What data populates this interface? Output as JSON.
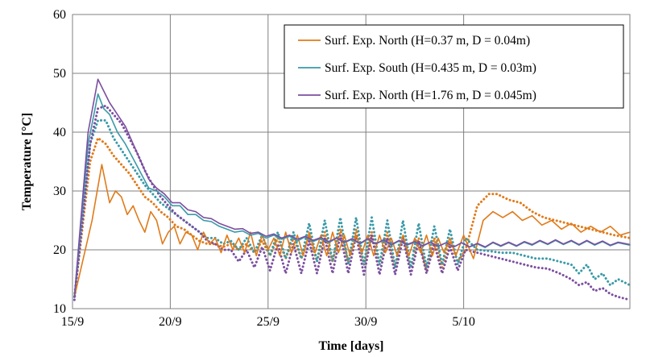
{
  "chart_data": {
    "type": "line",
    "title": "",
    "xlabel": "Time [days]",
    "ylabel": "Temperature [°C]",
    "xlim": [
      15.5,
      44.0
    ],
    "ylim": [
      10,
      60
    ],
    "grid": true,
    "legend_position": "top-right",
    "x_ticks": [
      {
        "value": 15.5,
        "label": "15/9"
      },
      {
        "value": 20.5,
        "label": "20/9"
      },
      {
        "value": 25.5,
        "label": "25/9"
      },
      {
        "value": 30.5,
        "label": "30/9"
      },
      {
        "value": 35.5,
        "label": "5/10"
      }
    ],
    "y_ticks": [
      10,
      20,
      30,
      40,
      50,
      60
    ],
    "series": [
      {
        "name": "Surf. Exp. North (H=0.37 m, D = 0.04m)",
        "color": "#e07b1a",
        "style": "solid",
        "legend": true,
        "x": [
          15.6,
          16.5,
          17.0,
          17.4,
          17.7,
          18.0,
          18.3,
          18.6,
          18.9,
          19.2,
          19.5,
          19.8,
          20.1,
          20.4,
          20.7,
          21.0,
          21.3,
          21.6,
          21.9,
          22.2,
          22.5,
          22.8,
          23.1,
          23.4,
          23.7,
          24.0,
          24.3,
          24.6,
          24.9,
          25.2,
          25.5,
          25.8,
          26.1,
          26.4,
          26.7,
          27.0,
          27.3,
          27.6,
          27.9,
          28.2,
          28.5,
          28.8,
          29.1,
          29.4,
          29.7,
          30.0,
          30.3,
          30.6,
          30.9,
          31.2,
          31.5,
          31.8,
          32.1,
          32.4,
          32.7,
          33.0,
          33.3,
          33.6,
          33.9,
          34.2,
          34.5,
          34.8,
          35.1,
          35.5,
          36.0,
          36.5,
          37.0,
          37.5,
          38.0,
          38.5,
          39.0,
          39.5,
          40.0,
          40.5,
          41.0,
          41.5,
          42.0,
          42.5,
          43.0,
          43.5,
          44.0
        ],
        "values": [
          12,
          25,
          34.5,
          28,
          30,
          29,
          26,
          27.5,
          25,
          23,
          26.5,
          25,
          21,
          23,
          24,
          21,
          23,
          22.5,
          20,
          23,
          21,
          22,
          19.5,
          22.5,
          20,
          22,
          19.5,
          23,
          19,
          22.5,
          20,
          22,
          19,
          23,
          19.5,
          22.5,
          19,
          23,
          19.5,
          22.5,
          19,
          23,
          19.5,
          22.5,
          19,
          22.5,
          19.5,
          22.5,
          19,
          22.5,
          19.5,
          22,
          19,
          22.5,
          19,
          22,
          19.5,
          22.5,
          19,
          22,
          19.5,
          22,
          19,
          22.5,
          18.5,
          25,
          26.5,
          25.5,
          26.5,
          25,
          25.8,
          24.2,
          25,
          23.5,
          24.5,
          23,
          24,
          23,
          24,
          22.5,
          23
        ]
      },
      {
        "name": "Surf. Exp. South (H=0.435 m, D = 0.03m)",
        "color": "#3a9aa8",
        "style": "solid",
        "legend": true,
        "x": [
          15.6,
          16.3,
          16.8,
          17.1,
          17.4,
          17.8,
          18.2,
          18.6,
          19.0,
          19.4,
          19.8,
          20.2,
          20.6,
          21.0,
          21.4,
          21.8,
          22.2,
          22.6,
          23.0,
          23.4,
          23.8,
          24.2,
          24.6,
          25.0,
          25.4,
          25.8,
          26.2,
          26.6,
          27.0,
          27.4,
          27.8,
          28.2,
          28.6,
          29.0,
          29.4,
          29.8,
          30.2,
          30.6,
          31.0,
          31.4,
          31.8,
          32.2,
          32.6,
          33.0,
          33.4,
          33.8,
          34.2,
          34.6,
          35.0,
          35.4,
          35.8,
          36.2,
          36.6,
          37.0,
          37.4,
          37.8,
          38.2,
          38.6,
          39.0,
          39.4,
          39.8,
          40.2,
          40.6,
          41.0,
          41.4,
          41.8,
          42.2,
          42.6,
          43.0,
          43.4,
          44.0
        ],
        "values": [
          12,
          38,
          46.5,
          44,
          43,
          40,
          38,
          35.5,
          33,
          30.5,
          30,
          29,
          27.5,
          27.5,
          26,
          26,
          25,
          24.8,
          24,
          23.5,
          23,
          23.2,
          22.5,
          22.8,
          22,
          22.5,
          21.8,
          22.3,
          21.5,
          22.2,
          21.4,
          22,
          21.2,
          22,
          21.2,
          21.8,
          21,
          21.8,
          21,
          21.6,
          20.8,
          21.5,
          20.8,
          21.3,
          20.6,
          21.3,
          20.6,
          21.2,
          20.5,
          21.2,
          20.5,
          21,
          20.4,
          21.2,
          20.6,
          21.2,
          20.6,
          21.3,
          20.8,
          21.5,
          20.9,
          21.6,
          20.9,
          21.5,
          20.8,
          21.5,
          20.8,
          21.4,
          20.7,
          21.2,
          20.8
        ]
      },
      {
        "name": "Surf. Exp. North (H=1.76 m, D = 0.045m)",
        "color": "#7b4fa0",
        "style": "solid",
        "legend": true,
        "x": [
          15.6,
          16.3,
          16.8,
          17.1,
          17.4,
          17.8,
          18.2,
          18.6,
          19.0,
          19.4,
          19.8,
          20.2,
          20.6,
          21.0,
          21.4,
          21.8,
          22.2,
          22.6,
          23.0,
          23.4,
          23.8,
          24.2,
          24.6,
          25.0,
          25.4,
          25.8,
          26.2,
          26.6,
          27.0,
          27.4,
          27.8,
          28.2,
          28.6,
          29.0,
          29.4,
          29.8,
          30.2,
          30.6,
          31.0,
          31.4,
          31.8,
          32.2,
          32.6,
          33.0,
          33.4,
          33.8,
          34.2,
          34.6,
          35.0,
          35.4,
          35.8,
          36.2,
          36.6,
          37.0,
          37.4,
          37.8,
          38.2,
          38.6,
          39.0,
          39.4,
          39.8,
          40.2,
          40.6,
          41.0,
          41.4,
          41.8,
          42.2,
          42.6,
          43.0,
          43.4,
          44.0
        ],
        "values": [
          12,
          40,
          49,
          47,
          45,
          43,
          41,
          38,
          35,
          32,
          30.5,
          29.5,
          28,
          28,
          26.8,
          26.5,
          25.5,
          25.3,
          24.5,
          24,
          23.5,
          23.6,
          22.8,
          23,
          22.3,
          22.7,
          22,
          22.5,
          21.8,
          22.3,
          21.6,
          22.1,
          21.4,
          22,
          21.3,
          21.9,
          21.1,
          21.9,
          21,
          21.7,
          20.9,
          21.6,
          20.9,
          21.4,
          20.7,
          21.3,
          20.6,
          21.2,
          20.5,
          21.2,
          20.5,
          21.1,
          20.5,
          21.3,
          20.7,
          21.3,
          20.7,
          21.4,
          20.9,
          21.6,
          21,
          21.7,
          21,
          21.6,
          20.9,
          21.6,
          20.9,
          21.5,
          20.8,
          21.3,
          20.9
        ]
      },
      {
        "name": "",
        "color": "#e07b1a",
        "style": "dotted",
        "legend": false,
        "x": [
          15.6,
          16.4,
          16.8,
          17.2,
          17.6,
          18.0,
          18.4,
          18.8,
          19.2,
          19.6,
          20.0,
          20.4,
          20.8,
          21.2,
          21.6,
          22.0,
          22.4,
          22.8,
          23.2,
          23.6,
          24.0,
          24.4,
          24.8,
          25.2,
          25.6,
          26.0,
          26.4,
          26.8,
          27.2,
          27.6,
          28.0,
          28.4,
          28.8,
          29.2,
          29.6,
          30.0,
          30.4,
          30.8,
          31.2,
          31.6,
          32.0,
          32.4,
          32.8,
          33.2,
          33.6,
          34.0,
          34.4,
          34.8,
          35.2,
          35.6,
          36.2,
          36.8,
          37.2,
          37.8,
          38.4,
          39.0,
          39.6,
          40.2,
          40.8,
          41.4,
          42.0,
          42.6,
          43.2,
          44.0
        ],
        "values": [
          12,
          35,
          39,
          38,
          36,
          34.5,
          33,
          31,
          29,
          28,
          26.5,
          25.5,
          24,
          23.5,
          22.5,
          21.5,
          21,
          21,
          20.5,
          21,
          20,
          21,
          19.5,
          21.5,
          19,
          22,
          18.5,
          22,
          18.5,
          22.5,
          18,
          23,
          18,
          23.5,
          18,
          23.5,
          17.5,
          23,
          17.5,
          23,
          17,
          22.5,
          17,
          22,
          16.5,
          22,
          17,
          21.5,
          18,
          20,
          27.5,
          29.5,
          29.5,
          28.5,
          28,
          26.5,
          25.5,
          25,
          24.5,
          24,
          23.5,
          23,
          22.5,
          22
        ]
      },
      {
        "name": "",
        "color": "#3a9aa8",
        "style": "dotted",
        "legend": false,
        "x": [
          15.6,
          16.4,
          16.8,
          17.2,
          17.6,
          18.0,
          18.4,
          18.8,
          19.2,
          19.6,
          20.0,
          20.4,
          20.8,
          21.2,
          21.6,
          22.0,
          22.4,
          22.8,
          23.2,
          23.6,
          24.0,
          24.4,
          24.8,
          25.2,
          25.6,
          26.0,
          26.4,
          26.8,
          27.2,
          27.6,
          28.0,
          28.4,
          28.8,
          29.2,
          29.6,
          30.0,
          30.4,
          30.8,
          31.2,
          31.6,
          32.0,
          32.4,
          32.8,
          33.2,
          33.6,
          34.0,
          34.4,
          34.8,
          35.2,
          35.6,
          36.2,
          36.8,
          37.4,
          38.0,
          38.6,
          39.2,
          39.8,
          40.4,
          41.0,
          41.4,
          41.8,
          42.2,
          42.6,
          43.0,
          43.4,
          44.0
        ],
        "values": [
          12,
          38,
          42,
          42,
          39,
          37,
          35,
          33,
          31,
          29.5,
          28,
          27,
          26,
          25,
          24,
          23,
          22,
          22,
          21,
          21.5,
          20,
          22,
          19.5,
          22.5,
          19,
          23,
          18.5,
          23,
          18.5,
          24.5,
          18,
          25,
          18,
          25.5,
          17.5,
          25.5,
          17.5,
          25.5,
          17.5,
          25,
          17,
          25,
          17,
          24.5,
          17,
          24,
          17.5,
          23.5,
          17.5,
          22,
          20,
          19.8,
          19.5,
          19.5,
          19,
          18.5,
          18.5,
          18,
          17.5,
          16,
          17.5,
          15,
          16,
          14,
          15,
          14
        ]
      },
      {
        "name": "",
        "color": "#7b4fa0",
        "style": "dotted",
        "legend": false,
        "x": [
          15.6,
          16.4,
          16.8,
          17.2,
          17.6,
          18.0,
          18.4,
          18.8,
          19.2,
          19.6,
          20.0,
          20.4,
          20.8,
          21.2,
          21.6,
          22.0,
          22.4,
          22.8,
          23.2,
          23.6,
          24.0,
          24.4,
          24.8,
          25.2,
          25.6,
          26.0,
          26.4,
          26.8,
          27.2,
          27.6,
          28.0,
          28.4,
          28.8,
          29.2,
          29.6,
          30.0,
          30.4,
          30.8,
          31.2,
          31.6,
          32.0,
          32.4,
          32.8,
          33.2,
          33.6,
          34.0,
          34.4,
          34.8,
          35.2,
          35.6,
          36.2,
          36.8,
          37.4,
          38.0,
          38.6,
          39.2,
          39.8,
          40.4,
          41.0,
          41.4,
          41.8,
          42.2,
          42.6,
          43.0,
          43.4,
          44.0
        ],
        "values": [
          11.5,
          38,
          44,
          44.5,
          43,
          41.5,
          39,
          36.5,
          33.5,
          31,
          29,
          27.5,
          26,
          25,
          24,
          23,
          21.5,
          21,
          20,
          20,
          18,
          20,
          17,
          20.5,
          16.5,
          21,
          16,
          21,
          16,
          21.5,
          16,
          22,
          16,
          22.5,
          16,
          22.5,
          15.8,
          22.5,
          15.8,
          22,
          15.8,
          22,
          15.8,
          21.5,
          16,
          21,
          16,
          20.5,
          16.5,
          20,
          19.5,
          19,
          18.5,
          18,
          17.5,
          17,
          16.8,
          16,
          15,
          14,
          14.5,
          13,
          13.5,
          12.5,
          12,
          11.5
        ]
      }
    ]
  }
}
